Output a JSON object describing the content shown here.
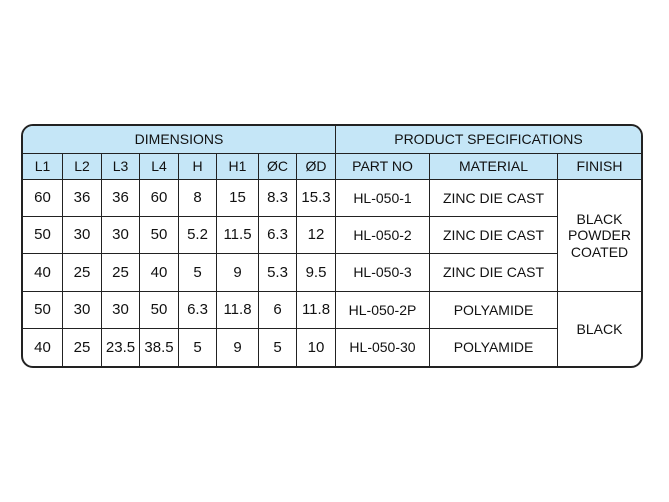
{
  "table": {
    "group_headers": [
      "DIMENSIONS",
      "PRODUCT SPECIFICATIONS"
    ],
    "columns": [
      "L1",
      "L2",
      "L3",
      "L4",
      "H",
      "H1",
      "ØC",
      "ØD",
      "PART NO",
      "MATERIAL",
      "FINISH"
    ],
    "rows": [
      [
        60,
        36,
        36,
        60,
        8,
        15,
        8.3,
        15.3,
        "HL-050-1",
        "ZINC DIE CAST"
      ],
      [
        50,
        30,
        30,
        50,
        5.2,
        11.5,
        6.3,
        12,
        "HL-050-2",
        "ZINC DIE CAST"
      ],
      [
        40,
        25,
        25,
        40,
        5,
        9,
        5.3,
        9.5,
        "HL-050-3",
        "ZINC DIE CAST"
      ],
      [
        50,
        30,
        30,
        50,
        6.3,
        11.8,
        6,
        11.8,
        "HL-050-2P",
        "POLYAMIDE"
      ],
      [
        40,
        25,
        23.5,
        38.5,
        5,
        9,
        5,
        10,
        "HL-050-30",
        "POLYAMIDE"
      ]
    ],
    "finish": [
      "BLACK POWDER COATED",
      "BLACK"
    ]
  }
}
